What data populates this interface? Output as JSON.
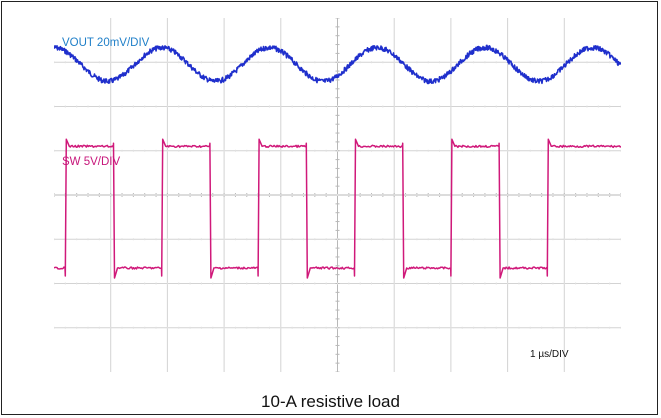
{
  "caption": "10-A resistive load",
  "chart_data": {
    "type": "line",
    "title": "",
    "grid": true,
    "x_divisions": 10,
    "y_divisions": 8,
    "timebase": "1 µs/DIV",
    "series": [
      {
        "name": "VOUT 20mV/DIV",
        "label": "VOUT 20mV/DIV",
        "color": "#1f2fcc",
        "marker": "¹²",
        "shape": "sine",
        "center_div": 1.05,
        "amplitude_div": 0.38,
        "period_div": 1.9,
        "x": [
          0.0,
          0.95,
          1.9,
          2.85,
          3.8,
          4.75,
          5.7,
          6.65,
          7.6,
          8.55,
          9.5
        ],
        "y_div": [
          0.67,
          1.43,
          0.67,
          1.43,
          0.67,
          1.43,
          0.67,
          1.43,
          0.67,
          1.43,
          0.67
        ]
      },
      {
        "name": "SW 5V/DIV",
        "label": "SW 5V/DIV",
        "color": "#d0197a",
        "marker": "¹²",
        "shape": "square",
        "high_div": 2.9,
        "low_div": 5.65,
        "rising_edges_div": [
          0.2,
          1.9,
          3.6,
          5.3,
          7.0,
          8.7
        ],
        "falling_edges_div": [
          1.05,
          2.75,
          4.45,
          6.15,
          7.85
        ]
      }
    ]
  }
}
